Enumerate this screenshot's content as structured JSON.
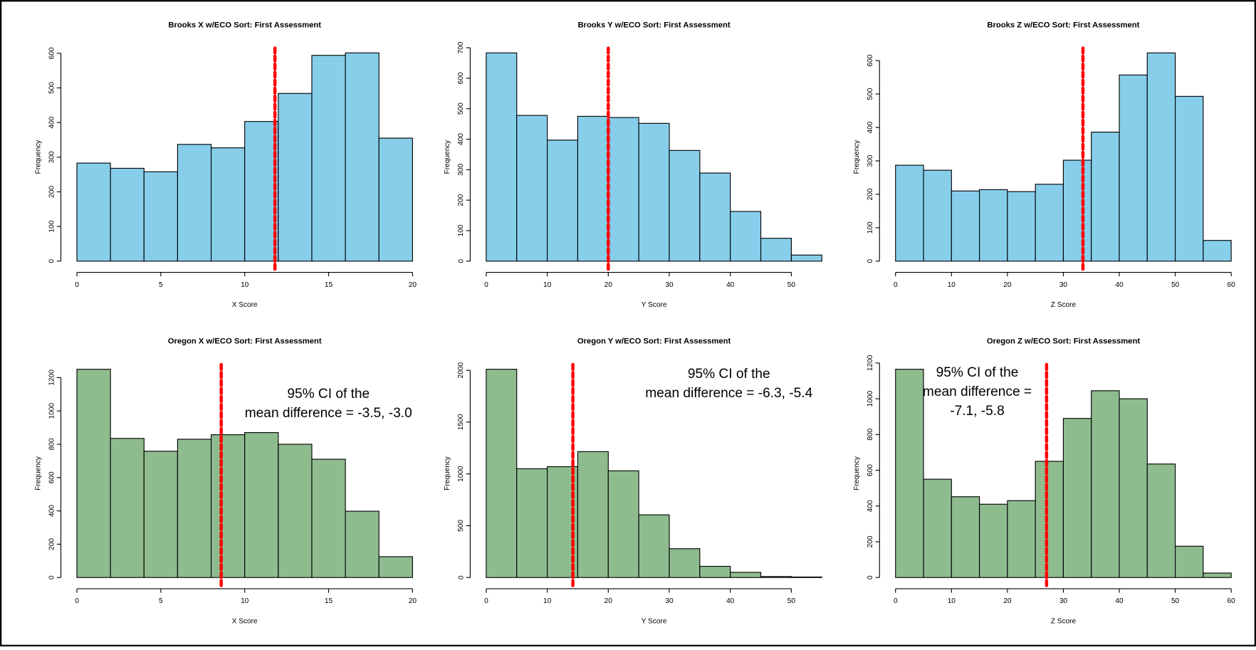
{
  "chart_data": [
    {
      "type": "histogram",
      "title": "Brooks X w/ECO Sort: First Assessment",
      "xlabel": "X Score",
      "ylabel": "Frequency",
      "color": "#87ceeb",
      "bins": [
        0,
        2,
        4,
        6,
        8,
        10,
        12,
        14,
        16,
        18,
        20
      ],
      "counts": [
        283,
        268,
        258,
        337,
        327,
        403,
        484,
        594,
        601,
        355
      ],
      "xlim": [
        0,
        20
      ],
      "xticks": [
        0,
        5,
        10,
        15,
        20
      ],
      "ylim": [
        0,
        601
      ],
      "yticks": [
        0,
        100,
        200,
        300,
        400,
        500,
        600
      ],
      "mean_line": 11.8,
      "mean_line_color": "#ff0000"
    },
    {
      "type": "histogram",
      "title": "Brooks Y w/ECO Sort: First Assessment",
      "xlabel": "Y Score",
      "ylabel": "Frequency",
      "color": "#87ceeb",
      "bins": [
        0,
        5,
        10,
        15,
        20,
        25,
        30,
        35,
        40,
        45,
        50,
        55
      ],
      "counts": [
        683,
        478,
        397,
        475,
        471,
        452,
        363,
        289,
        163,
        75,
        20
      ],
      "xlim": [
        0,
        55
      ],
      "xticks": [
        0,
        10,
        20,
        30,
        40,
        50
      ],
      "ylim": [
        0,
        683
      ],
      "yticks": [
        0,
        100,
        200,
        300,
        400,
        500,
        600,
        700
      ],
      "mean_line": 20,
      "mean_line_color": "#ff0000"
    },
    {
      "type": "histogram",
      "title": "Brooks Z w/ECO Sort: First Assessment",
      "xlabel": "Z Score",
      "ylabel": "Frequency",
      "color": "#87ceeb",
      "bins": [
        0,
        5,
        10,
        15,
        20,
        25,
        30,
        35,
        40,
        45,
        50,
        55,
        60
      ],
      "counts": [
        287,
        272,
        210,
        214,
        208,
        230,
        302,
        386,
        557,
        623,
        493,
        62
      ],
      "xlim": [
        0,
        60
      ],
      "xticks": [
        0,
        10,
        20,
        30,
        40,
        50,
        60
      ],
      "ylim": [
        0,
        623
      ],
      "yticks": [
        0,
        100,
        200,
        300,
        400,
        500,
        600
      ],
      "mean_line": 33.5,
      "mean_line_color": "#ff0000"
    },
    {
      "type": "histogram",
      "title": "Oregon X w/ECO Sort: First Assessment",
      "xlabel": "X Score",
      "ylabel": "Frequency",
      "color": "#8fbc8f",
      "bins": [
        0,
        2,
        4,
        6,
        8,
        10,
        12,
        14,
        16,
        18,
        20
      ],
      "counts": [
        1250,
        835,
        758,
        830,
        857,
        870,
        800,
        710,
        398,
        125
      ],
      "xlim": [
        0,
        20
      ],
      "xticks": [
        0,
        5,
        10,
        15,
        20
      ],
      "ylim": [
        0,
        1250
      ],
      "yticks": [
        0,
        200,
        400,
        600,
        800,
        1000,
        1200
      ],
      "mean_line": 8.6,
      "mean_line_color": "#ff0000",
      "annotation": [
        "95% CI of the",
        "mean difference =  -3.5, -3.0"
      ]
    },
    {
      "type": "histogram",
      "title": "Oregon Y w/ECO Sort: First Assessment",
      "xlabel": "Y Score",
      "ylabel": "Frequency",
      "color": "#8fbc8f",
      "bins": [
        0,
        5,
        10,
        15,
        20,
        25,
        30,
        35,
        40,
        45,
        50,
        55
      ],
      "counts": [
        2010,
        1050,
        1070,
        1215,
        1030,
        605,
        278,
        108,
        50,
        10,
        5
      ],
      "xlim": [
        0,
        55
      ],
      "xticks": [
        0,
        10,
        20,
        30,
        40,
        50
      ],
      "ylim": [
        0,
        2010
      ],
      "yticks": [
        0,
        500,
        1000,
        1500,
        2000
      ],
      "mean_line": 14.2,
      "mean_line_color": "#ff0000",
      "annotation": [
        "95% CI of the",
        "mean difference =  -6.3, -5.4"
      ]
    },
    {
      "type": "histogram",
      "title": "Oregon Z w/ECO Sort: First Assessment",
      "xlabel": "Z Score",
      "ylabel": "Frequency",
      "color": "#8fbc8f",
      "bins": [
        0,
        5,
        10,
        15,
        20,
        25,
        30,
        35,
        40,
        45,
        50,
        55,
        60
      ],
      "counts": [
        1165,
        550,
        452,
        410,
        430,
        650,
        890,
        1045,
        1000,
        635,
        175,
        25
      ],
      "xlim": [
        0,
        60
      ],
      "xticks": [
        0,
        10,
        20,
        30,
        40,
        50,
        60
      ],
      "ylim": [
        0,
        1165
      ],
      "yticks": [
        0,
        200,
        400,
        600,
        800,
        1000,
        1200
      ],
      "mean_line": 27,
      "mean_line_color": "#ff0000",
      "annotation": [
        "95% CI of the",
        "mean difference =",
        "-7.1, -5.8"
      ]
    }
  ]
}
